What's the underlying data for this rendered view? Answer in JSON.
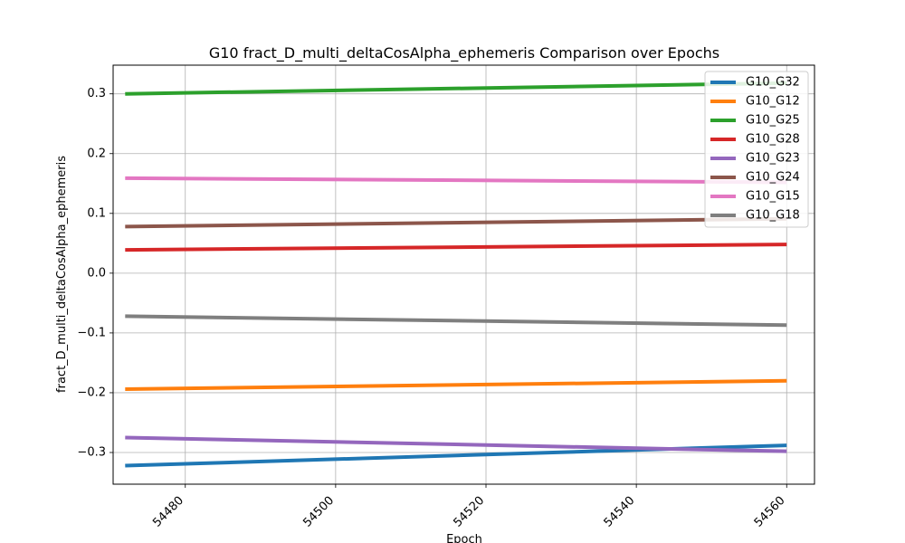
{
  "chart_data": {
    "type": "line",
    "title": "G10 fract_D_multi_deltaCosAlpha_ephemeris Comparison over Epochs",
    "xlabel": "Epoch",
    "ylabel": "fract_D_multi_deltaCosAlpha_ephemeris",
    "xlim": [
      54470.4,
      54563.7
    ],
    "ylim": [
      -0.353,
      0.348
    ],
    "xticks": [
      54480,
      54500,
      54520,
      54540,
      54560
    ],
    "yticks": [
      -0.3,
      -0.2,
      -0.1,
      0.0,
      0.1,
      0.2,
      0.3
    ],
    "xtick_labels": [
      "54480",
      "54500",
      "54520",
      "54540",
      "54560"
    ],
    "ytick_labels": [
      "−0.3",
      "−0.2",
      "−0.1",
      "0.0",
      "0.1",
      "0.2",
      "0.3"
    ],
    "grid": true,
    "legend_position": "upper right",
    "x": [
      54472,
      54560
    ],
    "series": [
      {
        "name": "G10_G32",
        "color": "#1f77b4",
        "values": [
          -0.322,
          -0.288
        ]
      },
      {
        "name": "G10_G12",
        "color": "#ff7f0e",
        "values": [
          -0.194,
          -0.18
        ]
      },
      {
        "name": "G10_G25",
        "color": "#2ca02c",
        "values": [
          0.3,
          0.318
        ]
      },
      {
        "name": "G10_G28",
        "color": "#d62728",
        "values": [
          0.039,
          0.048
        ]
      },
      {
        "name": "G10_G23",
        "color": "#9467bd",
        "values": [
          -0.275,
          -0.298
        ]
      },
      {
        "name": "G10_G24",
        "color": "#8c564b",
        "values": [
          0.078,
          0.091
        ]
      },
      {
        "name": "G10_G15",
        "color": "#e377c2",
        "values": [
          0.159,
          0.152
        ]
      },
      {
        "name": "G10_G18",
        "color": "#7f7f7f",
        "values": [
          -0.072,
          -0.087
        ]
      }
    ]
  }
}
